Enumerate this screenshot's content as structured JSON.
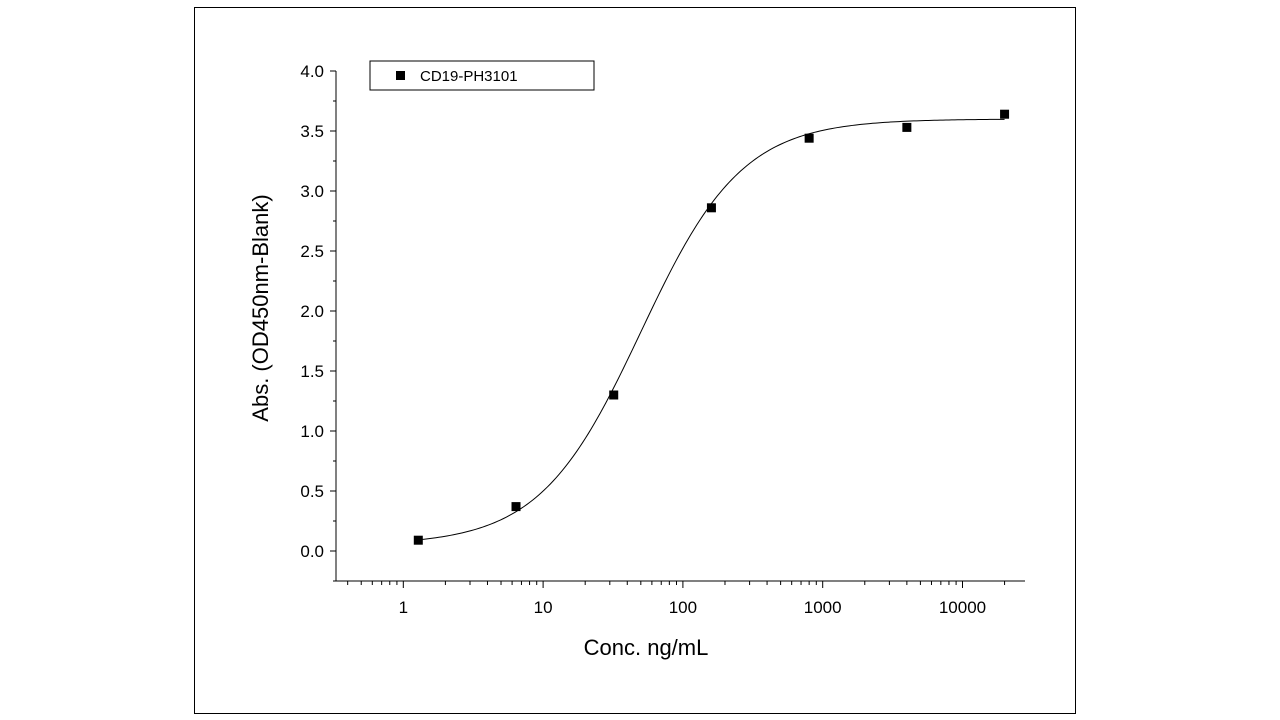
{
  "chart_data": {
    "type": "scatter",
    "title": "",
    "xlabel": "Conc. ng/mL",
    "ylabel": "Abs. (OD450nm-Blank)",
    "x_scale": "log",
    "xlim": [
      0.33,
      28000
    ],
    "ylim": [
      -0.25,
      4.0
    ],
    "x_ticks": [
      1,
      10,
      100,
      1000,
      10000
    ],
    "x_tick_labels": [
      "1",
      "10",
      "100",
      "1000",
      "10000"
    ],
    "y_ticks": [
      0.0,
      0.5,
      1.0,
      1.5,
      2.0,
      2.5,
      3.0,
      3.5,
      4.0
    ],
    "y_tick_labels": [
      "0.0",
      "0.5",
      "1.0",
      "1.5",
      "2.0",
      "2.5",
      "3.0",
      "3.5",
      "4.0"
    ],
    "grid": false,
    "legend_position": "top-left",
    "series": [
      {
        "name": "CD19-PH3101",
        "marker": "square",
        "color": "#000000",
        "x": [
          1.28,
          6.4,
          32,
          160,
          800,
          4000,
          20000
        ],
        "y": [
          0.09,
          0.37,
          1.3,
          2.86,
          3.44,
          3.53,
          3.64
        ]
      }
    ],
    "fit_curve": {
      "type": "4PL",
      "bottom": 0.05,
      "top": 3.6,
      "ec50": 50,
      "hill": 1.2,
      "color": "#000000"
    }
  }
}
